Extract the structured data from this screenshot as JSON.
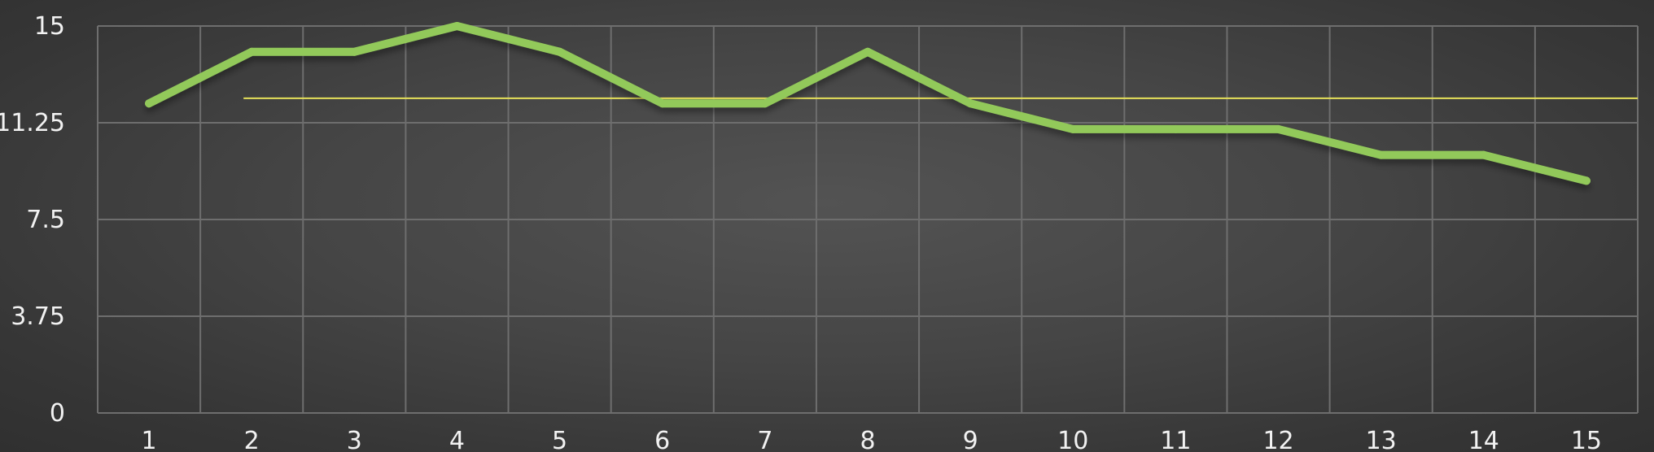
{
  "chart_data": {
    "type": "line",
    "title": "",
    "xlabel": "",
    "ylabel": "",
    "categories": [
      "1",
      "2",
      "3",
      "4",
      "5",
      "6",
      "7",
      "8",
      "9",
      "10",
      "11",
      "12",
      "13",
      "14",
      "15"
    ],
    "series": [
      {
        "values": [
          12,
          14,
          14,
          15,
          14,
          12,
          12,
          14,
          12,
          11,
          11,
          11,
          10,
          10,
          9
        ],
        "color": "#92c95a"
      }
    ],
    "reference_line": {
      "value": 12.2,
      "color": "#e6e15a",
      "from_category": "2"
    },
    "ylim": [
      0,
      15
    ],
    "yticks": [
      "0",
      "3.75",
      "7.5",
      "11.25",
      "15"
    ],
    "grid": true,
    "legend": "none"
  }
}
